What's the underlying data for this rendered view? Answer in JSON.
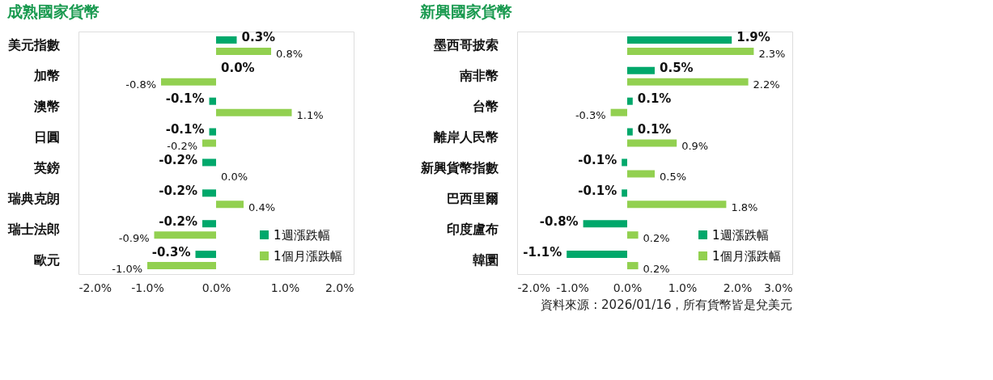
{
  "chart_data": [
    {
      "type": "bar",
      "orientation": "horizontal",
      "title": "成熟國家貨幣",
      "categories": [
        "美元指數",
        "加幣",
        "澳幣",
        "日圓",
        "英鎊",
        "瑞典克朗",
        "瑞士法郎",
        "歐元"
      ],
      "series": [
        {
          "name": "1週漲跌幅",
          "color": "#00a86b",
          "values": [
            0.3,
            0.0,
            -0.1,
            -0.1,
            -0.2,
            -0.2,
            -0.2,
            -0.3
          ],
          "value_labels": [
            "0.3%",
            "0.0%",
            "-0.1%",
            "-0.1%",
            "-0.2%",
            "-0.2%",
            "-0.2%",
            "-0.3%"
          ]
        },
        {
          "name": "1個月漲跌幅",
          "color": "#92d050",
          "values": [
            0.8,
            -0.8,
            1.1,
            -0.2,
            0.0,
            0.4,
            -0.9,
            -1.0
          ],
          "value_labels": [
            "0.8%",
            "-0.8%",
            "1.1%",
            "-0.2%",
            "0.0%",
            "0.4%",
            "-0.9%",
            "-1.0%"
          ]
        }
      ],
      "xlim": [
        -2,
        2
      ],
      "xticks": [
        {
          "value": -2,
          "label": "-2.0%"
        },
        {
          "value": -1,
          "label": "-1.0%"
        },
        {
          "value": 0,
          "label": "0.0%"
        },
        {
          "value": 1,
          "label": "1.0%"
        },
        {
          "value": 2,
          "label": "2.0%"
        }
      ],
      "legend": "bottom right",
      "grid": false
    },
    {
      "type": "bar",
      "orientation": "horizontal",
      "title": "新興國家貨幣",
      "categories": [
        "墨西哥披索",
        "南非幣",
        "台幣",
        "離岸人民幣",
        "新興貨幣指數",
        "巴西里爾",
        "印度盧布",
        "韓圜"
      ],
      "series": [
        {
          "name": "1週漲跌幅",
          "color": "#00a86b",
          "values": [
            1.9,
            0.5,
            0.1,
            0.1,
            -0.1,
            -0.1,
            -0.8,
            -1.1
          ],
          "value_labels": [
            "1.9%",
            "0.5%",
            "0.1%",
            "0.1%",
            "-0.1%",
            "-0.1%",
            "-0.8%",
            "-1.1%"
          ]
        },
        {
          "name": "1個月漲跌幅",
          "color": "#92d050",
          "values": [
            2.3,
            2.2,
            -0.3,
            0.9,
            0.5,
            1.8,
            0.2,
            0.2
          ],
          "value_labels": [
            "2.3%",
            "2.2%",
            "-0.3%",
            "0.9%",
            "0.5%",
            "1.8%",
            "0.2%",
            "0.2%"
          ]
        }
      ],
      "xlim": [
        -2,
        3
      ],
      "xticks": [
        {
          "value": -2,
          "label": "-2.0%"
        },
        {
          "value": -1,
          "label": "-1.0%"
        },
        {
          "value": 0,
          "label": "0.0%"
        },
        {
          "value": 1,
          "label": "1.0%"
        },
        {
          "value": 2,
          "label": "2.0%"
        },
        {
          "value": 3,
          "label": "3.0%"
        }
      ],
      "legend": "bottom right",
      "grid": false,
      "annotations": [
        "資料來源 : 2026/01/16，所有貨幣皆是兌美元"
      ]
    }
  ]
}
